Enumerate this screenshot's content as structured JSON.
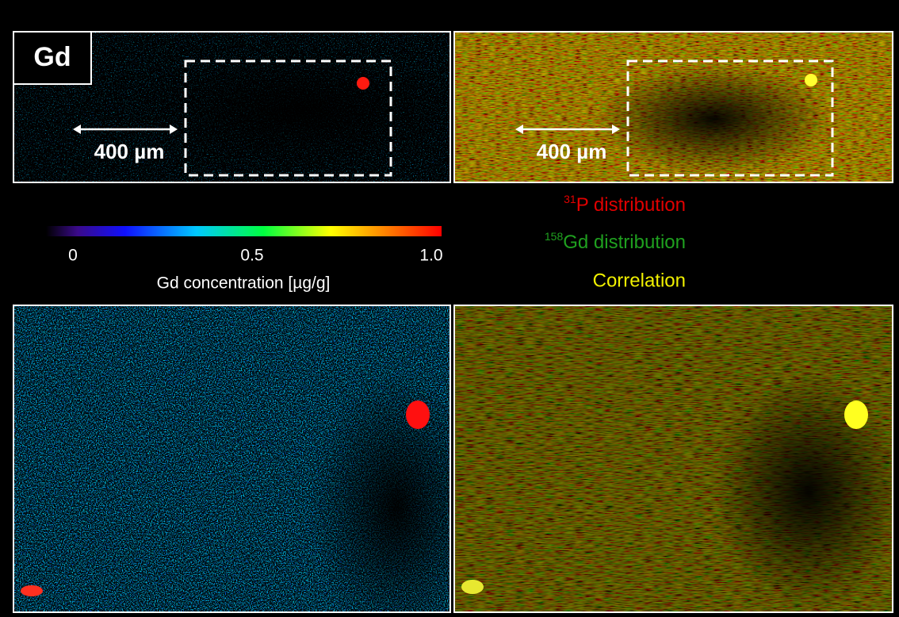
{
  "panels": {
    "element_label": "Gd",
    "scale_bar": "400 µm",
    "scale_bar_right": "400 µm"
  },
  "colorbar": {
    "label": "Gd concentration [µg/g]",
    "lim": [
      0,
      1
    ],
    "ticks": [
      0,
      0.5,
      {
        "value": 1,
        "label": "1.0"
      }
    ]
  },
  "legend": {
    "p_isotope": "31",
    "p_text": "P distribution",
    "gd_isotope": "158",
    "gd_text": "Gd distribution",
    "correlation": "Correlation"
  }
}
